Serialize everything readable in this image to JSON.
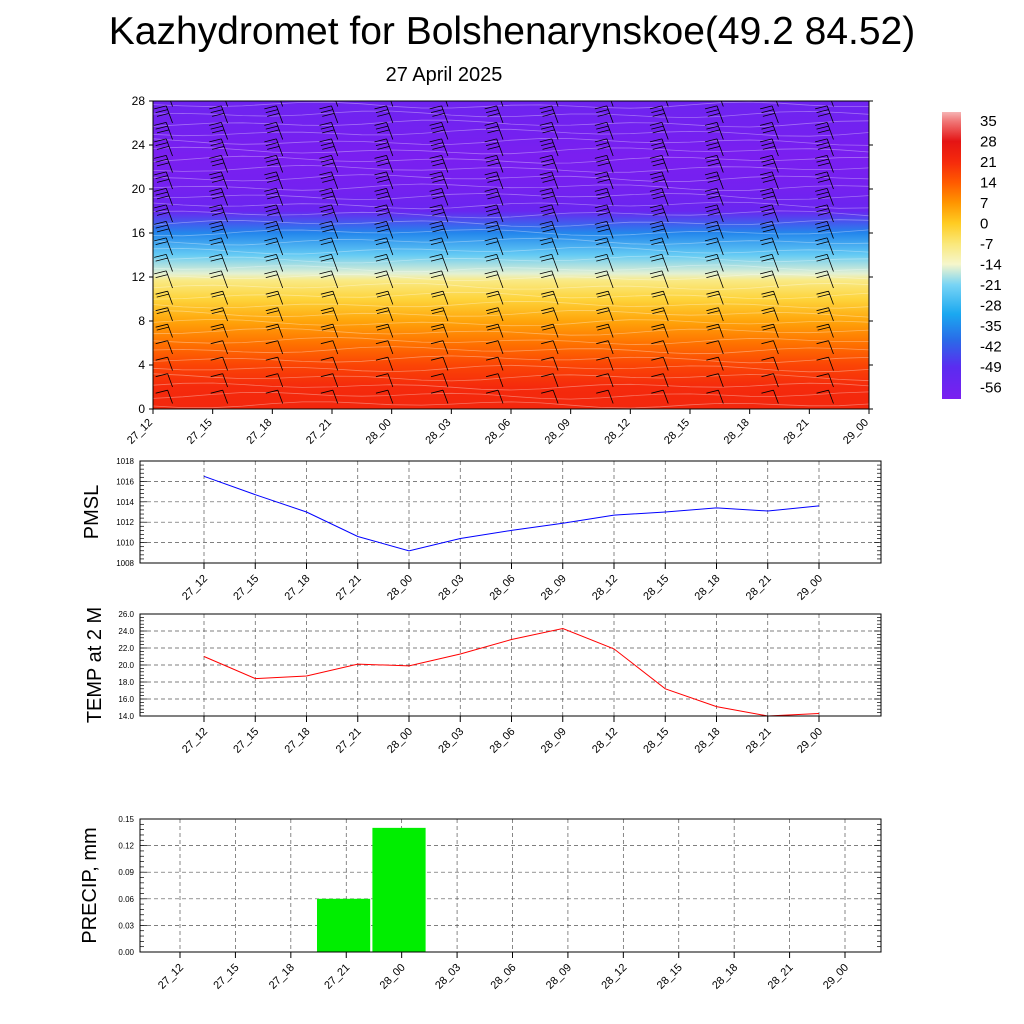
{
  "title": "Kazhydromet for Bolshenarynskoe(49.2 84.52)",
  "subtitle": "27 April 2025",
  "chart_data": [
    {
      "type": "heatmap",
      "name": "Vertical cross-section",
      "x_ticks": [
        "27_12",
        "27_15",
        "27_18",
        "27_21",
        "28_00",
        "28_03",
        "28_06",
        "28_09",
        "28_12",
        "28_15",
        "28_18",
        "28_21",
        "29_00"
      ],
      "y_ticks": [
        "0",
        "4",
        "8",
        "12",
        "16",
        "20",
        "24",
        "28"
      ],
      "ylim": [
        0,
        28
      ],
      "colorbar_labels": [
        "35",
        "28",
        "21",
        "14",
        "7",
        "0",
        "-7",
        "-14",
        "-21",
        "-28",
        "-35",
        "-42",
        "-49",
        "-56"
      ],
      "colorbar_range": [
        -60,
        38
      ],
      "colormap": [
        {
          "v": -60,
          "c": "#7a1ff0"
        },
        {
          "v": -49,
          "c": "#5a2cf0"
        },
        {
          "v": -40,
          "c": "#2a6ae8"
        },
        {
          "v": -31,
          "c": "#1aa8f0"
        },
        {
          "v": -21,
          "c": "#78d4f5"
        },
        {
          "v": -14,
          "c": "#f6f6cc"
        },
        {
          "v": -7,
          "c": "#fae87a"
        },
        {
          "v": 0,
          "c": "#ffcc22"
        },
        {
          "v": 7,
          "c": "#ff9500"
        },
        {
          "v": 14,
          "c": "#ff5a00"
        },
        {
          "v": 21,
          "c": "#f52a0c"
        },
        {
          "v": 28,
          "c": "#e41414"
        },
        {
          "v": 35,
          "c": "#f07a7a"
        },
        {
          "v": 38,
          "c": "#f6b4b4"
        }
      ],
      "temperature_profile": [
        {
          "h": 0,
          "t": 22
        },
        {
          "h": 2,
          "t": 21
        },
        {
          "h": 4,
          "t": 17
        },
        {
          "h": 6,
          "t": 11
        },
        {
          "h": 8,
          "t": 5
        },
        {
          "h": 10,
          "t": -2
        },
        {
          "h": 11.7,
          "t": -8
        },
        {
          "h": 12.3,
          "t": -15
        },
        {
          "h": 14,
          "t": -23
        },
        {
          "h": 16,
          "t": -36
        },
        {
          "h": 18,
          "t": -54
        },
        {
          "h": 20,
          "t": -58
        },
        {
          "h": 23,
          "t": -60
        },
        {
          "h": 25,
          "t": -58
        },
        {
          "h": 28,
          "t": -56
        }
      ],
      "wind_barb_levels": [
        0.5,
        2,
        3.5,
        5,
        6.5,
        8,
        9.5,
        11,
        12.5,
        14,
        15.5,
        17,
        18.5,
        20,
        21.5,
        23,
        24.5,
        26,
        27.5
      ],
      "wind_barb_columns": 13
    },
    {
      "type": "line",
      "ylabel": "PMSL",
      "categories": [
        "27_12",
        "27_15",
        "27_18",
        "27_21",
        "28_00",
        "28_03",
        "28_06",
        "28_09",
        "28_12",
        "28_15",
        "28_18",
        "28_21",
        "29_00"
      ],
      "y_ticks": [
        "1008",
        "1010",
        "1012",
        "1014",
        "1016",
        "1018"
      ],
      "ylim": [
        1008,
        1018
      ],
      "series": [
        {
          "values": [
            1016.5,
            1014.7,
            1013.0,
            1010.6,
            1009.2,
            1010.4,
            1011.2,
            1011.9,
            1012.7,
            1013.0,
            1013.4,
            1013.1,
            1013.6
          ],
          "color": "#0000ff"
        }
      ]
    },
    {
      "type": "line",
      "ylabel": "TEMP at 2 M",
      "categories": [
        "27_12",
        "27_15",
        "27_18",
        "27_21",
        "28_00",
        "28_03",
        "28_06",
        "28_09",
        "28_12",
        "28_15",
        "28_18",
        "28_21",
        "29_00"
      ],
      "y_ticks": [
        "14.0",
        "16.0",
        "18.0",
        "20.0",
        "22.0",
        "24.0",
        "26.0"
      ],
      "ylim": [
        14,
        26
      ],
      "series": [
        {
          "values": [
            21.0,
            18.4,
            18.7,
            20.1,
            19.9,
            21.3,
            23.0,
            24.3,
            21.9,
            17.2,
            15.1,
            14.0,
            14.3
          ],
          "color": "#ff0000"
        }
      ]
    },
    {
      "type": "bar",
      "ylabel": "PRECIP, mm",
      "categories": [
        "27_12",
        "27_15",
        "27_18",
        "27_21",
        "28_00",
        "28_03",
        "28_06",
        "28_09",
        "28_12",
        "28_15",
        "28_18",
        "28_21",
        "29_00"
      ],
      "y_ticks": [
        "0.00",
        "0.03",
        "0.06",
        "0.09",
        "0.12",
        "0.15"
      ],
      "ylim": [
        0,
        0.15
      ],
      "series": [
        {
          "values": [
            0,
            0,
            0,
            0.06,
            0.14,
            0,
            0,
            0,
            0,
            0,
            0,
            0,
            0
          ],
          "color": "#00ee00"
        }
      ]
    }
  ]
}
